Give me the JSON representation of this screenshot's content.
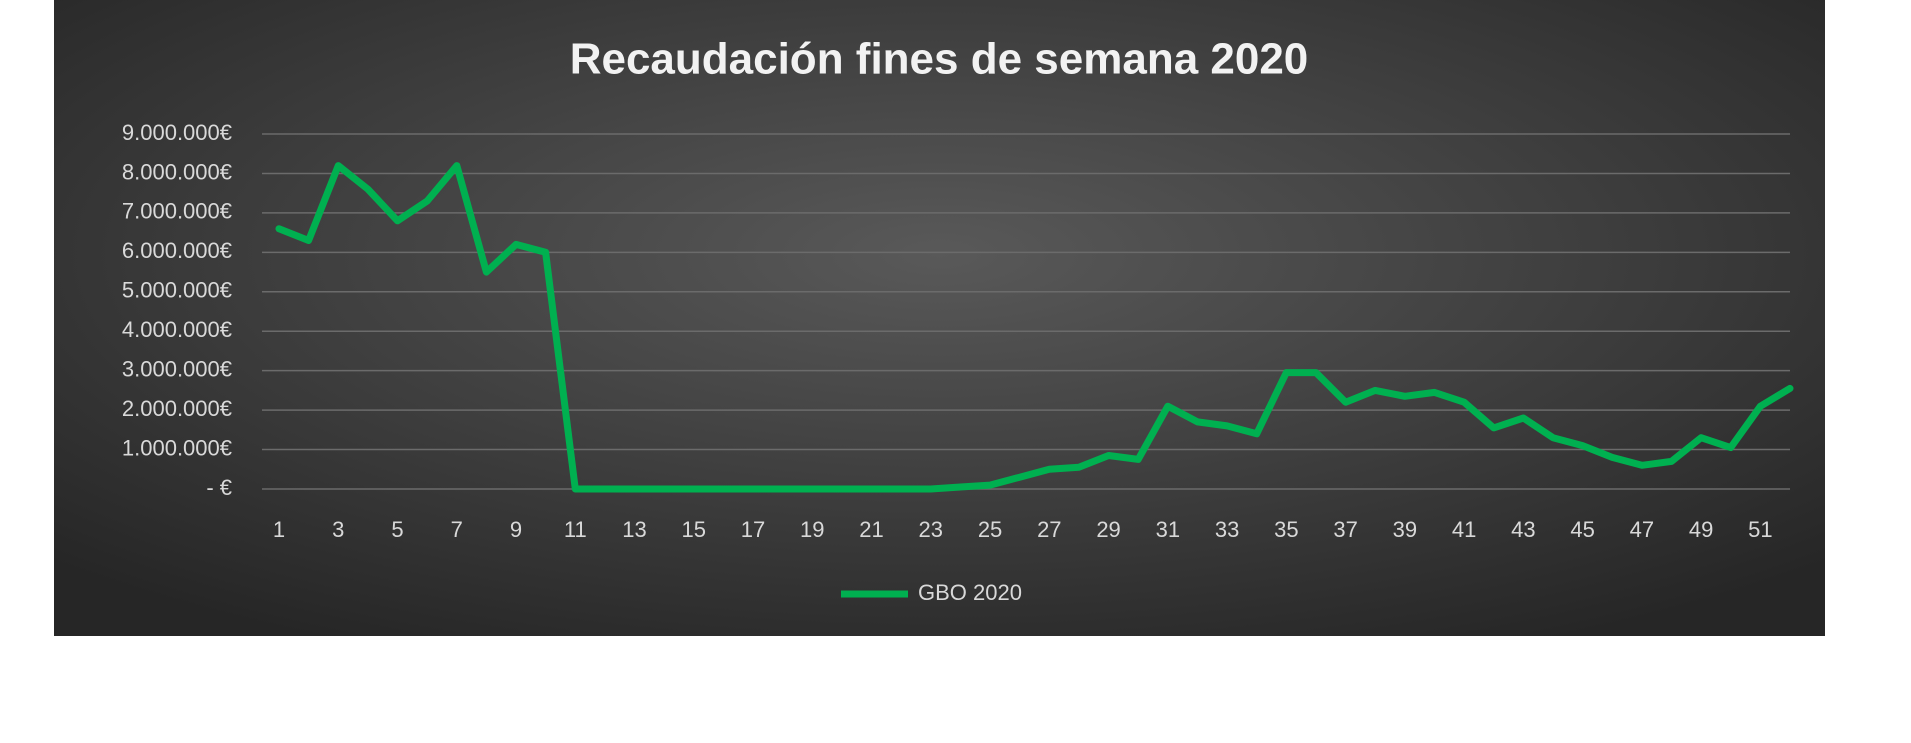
{
  "chart_data": {
    "type": "line",
    "title": "Recaudación fines de semana 2020",
    "categories": [
      "1",
      null,
      "3",
      null,
      "5",
      null,
      "7",
      null,
      "9",
      null,
      "11",
      null,
      "13",
      null,
      "15",
      null,
      "17",
      null,
      "19",
      null,
      "21",
      null,
      "23",
      null,
      "25",
      null,
      "27",
      null,
      "29",
      null,
      "31",
      null,
      "33",
      null,
      "35",
      null,
      "37",
      null,
      "39",
      null,
      "41",
      null,
      "43",
      null,
      "45",
      null,
      "47",
      null,
      "49",
      null,
      "51",
      null
    ],
    "series": [
      {
        "name": "GBO 2020",
        "color": "#00b050",
        "values": [
          6600000,
          6300000,
          8200000,
          7600000,
          6800000,
          7300000,
          8200000,
          5500000,
          6200000,
          6000000,
          0,
          0,
          0,
          0,
          0,
          0,
          0,
          0,
          0,
          0,
          0,
          0,
          0,
          50000,
          100000,
          300000,
          500000,
          550000,
          850000,
          750000,
          2100000,
          1700000,
          1600000,
          1400000,
          2950000,
          2950000,
          2200000,
          2500000,
          2350000,
          2450000,
          2200000,
          1550000,
          1800000,
          1300000,
          1100000,
          800000,
          600000,
          700000,
          1300000,
          1050000,
          2100000,
          2550000
        ]
      }
    ],
    "ylim": [
      0,
      9000000
    ],
    "yticks": [
      {
        "value": 0,
        "label": "-   €"
      },
      {
        "value": 1000000,
        "label": "1.000.000€"
      },
      {
        "value": 2000000,
        "label": "2.000.000€"
      },
      {
        "value": 3000000,
        "label": "3.000.000€"
      },
      {
        "value": 4000000,
        "label": "4.000.000€"
      },
      {
        "value": 5000000,
        "label": "5.000.000€"
      },
      {
        "value": 6000000,
        "label": "6.000.000€"
      },
      {
        "value": 7000000,
        "label": "7.000.000€"
      },
      {
        "value": 8000000,
        "label": "8.000.000€"
      },
      {
        "value": 9000000,
        "label": "9.000.000€"
      }
    ],
    "grid": true,
    "legend": "bottom"
  }
}
